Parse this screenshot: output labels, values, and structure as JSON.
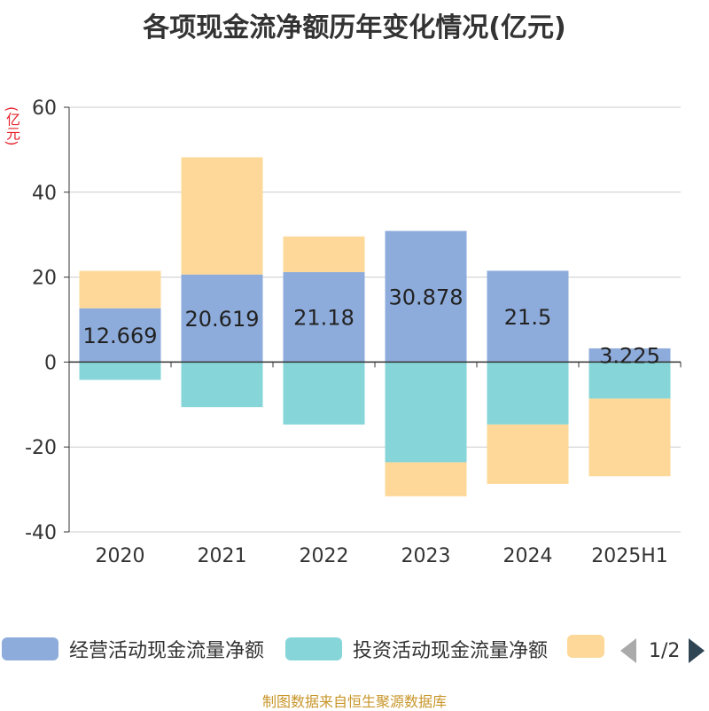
{
  "title": "各项现金流净额历年变化情况(亿元)",
  "y_unit": "(亿元)",
  "source": "制图数据来自恒生聚源数据库",
  "legend": {
    "items": [
      {
        "label": "经营活动现金流量净额",
        "color": "#8eacdb"
      },
      {
        "label": "投资活动现金流量净额",
        "color": "#86d5d8"
      },
      {
        "label": "",
        "color": "#fdd898"
      }
    ],
    "pager": "1/2"
  },
  "chart_data": {
    "type": "bar",
    "stacked": true,
    "categories": [
      "2020",
      "2021",
      "2022",
      "2023",
      "2024",
      "2025H1"
    ],
    "ylim": [
      -40,
      60
    ],
    "yticks": [
      60,
      40,
      20,
      0,
      -20,
      -40
    ],
    "grid": true,
    "series": [
      {
        "name": "经营活动现金流量净额",
        "color": "#8eacdb",
        "values": [
          12.669,
          20.619,
          21.18,
          30.878,
          21.5,
          3.225
        ],
        "labels": [
          "12.669",
          "20.619",
          "21.18",
          "30.878",
          "21.5",
          "3.225"
        ]
      },
      {
        "name": "投资活动现金流量净额",
        "color": "#86d5d8",
        "values": [
          -4.2,
          -10.6,
          -14.7,
          -23.6,
          -14.7,
          -8.6
        ]
      },
      {
        "color": "#fdd898",
        "values": [
          8.8,
          27.6,
          8.4,
          -8.0,
          -14.0,
          -18.3
        ]
      }
    ]
  }
}
